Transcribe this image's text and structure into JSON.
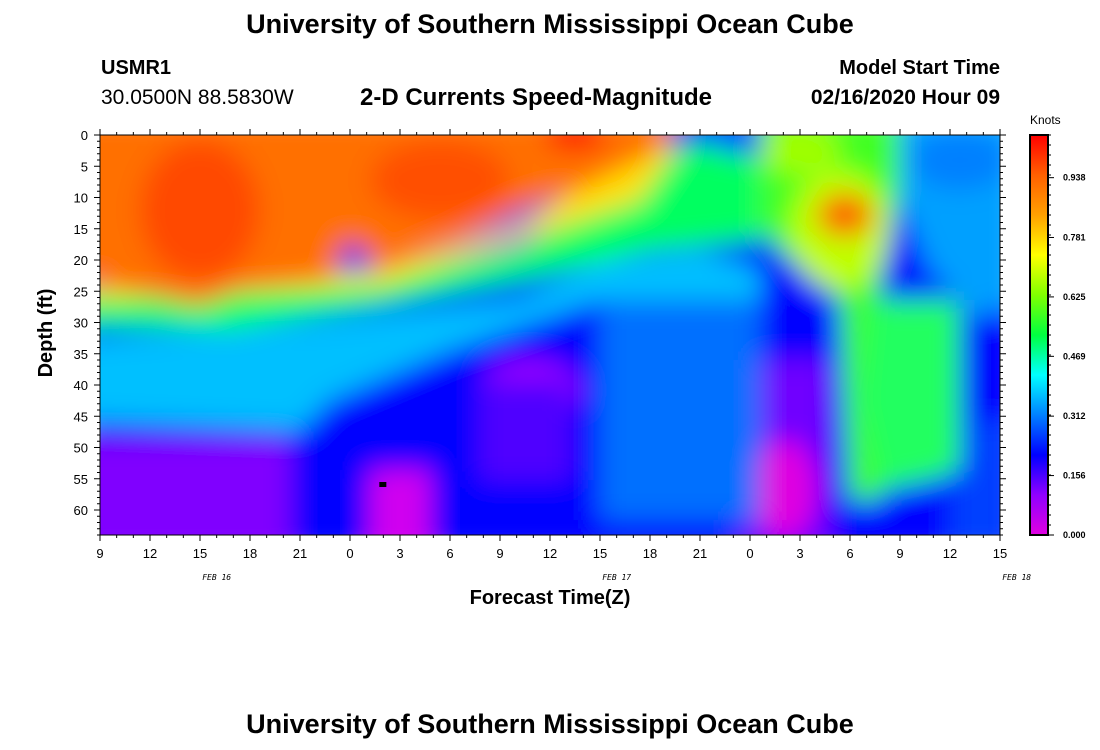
{
  "header": {
    "title": "University of Southern Mississippi Ocean Cube",
    "station_id": "USMR1",
    "station_coords": "30.0500N 88.5830W",
    "subtitle": "2-D Currents Speed-Magnitude",
    "model_start_label": "Model Start Time",
    "model_start_value": "02/16/2020 Hour 09"
  },
  "footer": {
    "title": "University of Southern Mississippi Ocean Cube"
  },
  "chart_data": {
    "type": "heatmap",
    "xlabel": "Forecast Time(Z)",
    "ylabel": "Depth (ft)",
    "x_tick_labels": [
      "9",
      "12",
      "15",
      "18",
      "21",
      "0",
      "3",
      "6",
      "9",
      "12",
      "15",
      "18",
      "21",
      "0",
      "3",
      "6",
      "9",
      "12",
      "15"
    ],
    "date_labels": [
      {
        "text": "FEB 16",
        "at_hour": 16
      },
      {
        "text": "FEB 17",
        "at_hour": 40
      },
      {
        "text": "FEB 18",
        "at_hour": 64
      }
    ],
    "x_range_hours": [
      9,
      63
    ],
    "x_domain_label": "hours after 02/16 00Z: start 9, end 63",
    "y_tick_labels": [
      "0",
      "5",
      "10",
      "15",
      "20",
      "25",
      "30",
      "35",
      "40",
      "45",
      "50",
      "55",
      "60"
    ],
    "y_range": [
      0,
      64
    ],
    "colorbar": {
      "units": "Knots",
      "min": 0.0,
      "max": 1.05,
      "tick_labels": [
        "0.938",
        "0.781",
        "0.625",
        "0.469",
        "0.312",
        "0.156",
        "0.000"
      ],
      "tick_values": [
        0.938,
        0.781,
        0.625,
        0.469,
        0.312,
        0.156,
        0.0
      ],
      "colors": [
        "#e000e0",
        "#9000ff",
        "#0000ff",
        "#0080ff",
        "#00ffff",
        "#00ff40",
        "#80ff00",
        "#ffff00",
        "#ffa000",
        "#ff6000",
        "#ff0000"
      ]
    },
    "marker": {
      "x_hour": 26,
      "depth": 56
    }
  }
}
